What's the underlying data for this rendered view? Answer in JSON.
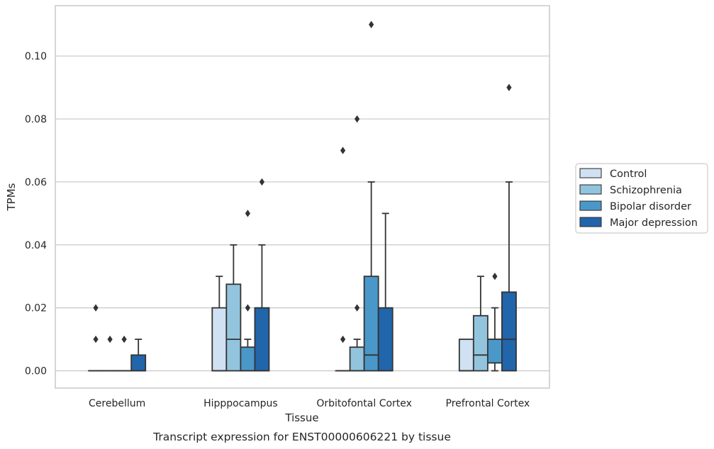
{
  "chart_data": {
    "type": "box",
    "caption": "Transcript expression for ENST00000606221 by tissue",
    "xlabel": "Tissue",
    "ylabel": "TPMs",
    "ylim": [
      -0.0055,
      0.116
    ],
    "yticks": [
      0.0,
      0.02,
      0.04,
      0.06,
      0.08,
      0.1
    ],
    "ytick_labels": [
      "0.00",
      "0.02",
      "0.04",
      "0.06",
      "0.08",
      "0.10"
    ],
    "categories": [
      "Cerebellum",
      "Hipppocampus",
      "Orbitofontal Cortex",
      "Prefrontal Cortex"
    ],
    "grid": "horizontal",
    "legend_position": "right",
    "series": [
      {
        "name": "Control",
        "color": "#cfe1f2",
        "boxes": [
          {
            "q1": 0.0,
            "median": 0.0,
            "q3": 0.0,
            "whisker_low": 0.0,
            "whisker_high": 0.0,
            "outliers": [
              0.01,
              0.02
            ]
          },
          {
            "q1": 0.0,
            "median": 0.0,
            "q3": 0.02,
            "whisker_low": 0.0,
            "whisker_high": 0.03,
            "outliers": []
          },
          {
            "q1": 0.0,
            "median": 0.0,
            "q3": 0.0,
            "whisker_low": 0.0,
            "whisker_high": 0.0,
            "outliers": [
              0.01,
              0.07
            ]
          },
          {
            "q1": 0.0,
            "median": 0.0,
            "q3": 0.01,
            "whisker_low": 0.0,
            "whisker_high": 0.01,
            "outliers": []
          }
        ]
      },
      {
        "name": "Schizophrenia",
        "color": "#93c4de",
        "boxes": [
          {
            "q1": 0.0,
            "median": 0.0,
            "q3": 0.0,
            "whisker_low": 0.0,
            "whisker_high": 0.0,
            "outliers": [
              0.01
            ]
          },
          {
            "q1": 0.0,
            "median": 0.01,
            "q3": 0.0275,
            "whisker_low": 0.0,
            "whisker_high": 0.04,
            "outliers": []
          },
          {
            "q1": 0.0,
            "median": 0.0,
            "q3": 0.0075,
            "whisker_low": 0.0,
            "whisker_high": 0.01,
            "outliers": [
              0.02,
              0.08
            ]
          },
          {
            "q1": 0.0,
            "median": 0.005,
            "q3": 0.0175,
            "whisker_low": 0.0,
            "whisker_high": 0.03,
            "outliers": []
          }
        ]
      },
      {
        "name": "Bipolar disorder",
        "color": "#4a98c9",
        "boxes": [
          {
            "q1": 0.0,
            "median": 0.0,
            "q3": 0.0,
            "whisker_low": 0.0,
            "whisker_high": 0.0,
            "outliers": [
              0.01
            ]
          },
          {
            "q1": 0.0,
            "median": 0.0,
            "q3": 0.0075,
            "whisker_low": 0.0,
            "whisker_high": 0.01,
            "outliers": [
              0.02,
              0.05
            ]
          },
          {
            "q1": 0.0,
            "median": 0.005,
            "q3": 0.03,
            "whisker_low": 0.0,
            "whisker_high": 0.06,
            "outliers": [
              0.11
            ]
          },
          {
            "q1": 0.0025,
            "median": 0.01,
            "q3": 0.01,
            "whisker_low": 0.0,
            "whisker_high": 0.02,
            "outliers": [
              0.03
            ]
          }
        ]
      },
      {
        "name": "Major depression",
        "color": "#2165ab",
        "boxes": [
          {
            "q1": 0.0,
            "median": 0.0,
            "q3": 0.005,
            "whisker_low": 0.0,
            "whisker_high": 0.01,
            "outliers": []
          },
          {
            "q1": 0.0,
            "median": 0.0,
            "q3": 0.02,
            "whisker_low": 0.0,
            "whisker_high": 0.04,
            "outliers": [
              0.06
            ]
          },
          {
            "q1": 0.0,
            "median": 0.0,
            "q3": 0.02,
            "whisker_low": 0.0,
            "whisker_high": 0.05,
            "outliers": []
          },
          {
            "q1": 0.0,
            "median": 0.01,
            "q3": 0.025,
            "whisker_low": 0.0,
            "whisker_high": 0.06,
            "outliers": [
              0.09
            ]
          }
        ]
      }
    ],
    "style": {
      "edge_color": "#333333",
      "grid_color": "#cccccc",
      "frame_color": "#cccccc",
      "background": "#ffffff"
    }
  }
}
